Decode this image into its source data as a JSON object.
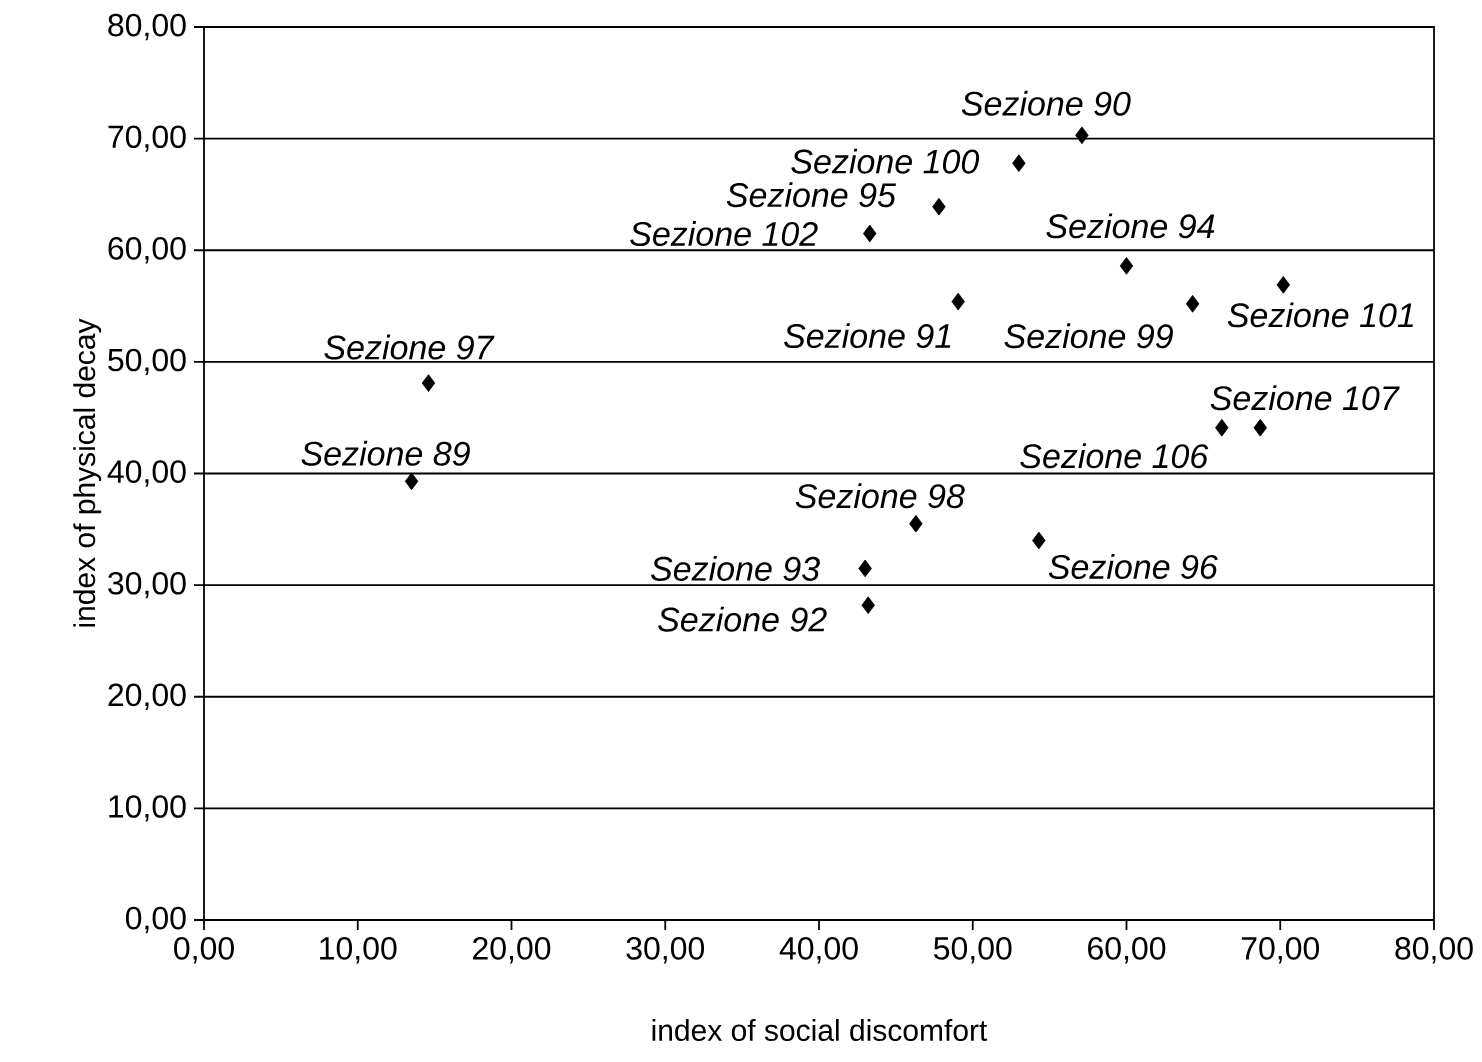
{
  "chart_data": {
    "type": "scatter",
    "xlabel": "index of social discomfort",
    "ylabel": "index of physical decay",
    "x": [
      13.5,
      14.6,
      57.1,
      49.05,
      43.2,
      43.0,
      60.0,
      47.8,
      54.3,
      46.3,
      64.3,
      53.0,
      70.2,
      43.3,
      66.2,
      68.7
    ],
    "values": [
      39.3,
      48.1,
      70.3,
      55.4,
      28.2,
      31.5,
      58.6,
      63.9,
      34.0,
      35.5,
      55.2,
      67.8,
      56.9,
      61.5,
      44.1,
      44.1
    ],
    "color": "#000000",
    "marker": "diamond",
    "grid": "y",
    "xlim": [
      0,
      80
    ],
    "ylim": [
      0,
      80
    ],
    "xticks": [
      {
        "value": 0,
        "label": "0,00"
      },
      {
        "value": 10,
        "label": "10,00"
      },
      {
        "value": 20,
        "label": "20,00"
      },
      {
        "value": 30,
        "label": "30,00"
      },
      {
        "value": 40,
        "label": "40,00"
      },
      {
        "value": 50,
        "label": "50,00"
      },
      {
        "value": 60,
        "label": "60,00"
      },
      {
        "value": 70,
        "label": "70,00"
      },
      {
        "value": 80,
        "label": "80,00"
      }
    ],
    "yticks": [
      {
        "value": 0,
        "label": "0,00"
      },
      {
        "value": 10,
        "label": "10,00"
      },
      {
        "value": 20,
        "label": "20,00"
      },
      {
        "value": 30,
        "label": "30,00"
      },
      {
        "value": 40,
        "label": "40,00"
      },
      {
        "value": 50,
        "label": "50,00"
      },
      {
        "value": 60,
        "label": "60,00"
      },
      {
        "value": 70,
        "label": "70,00"
      },
      {
        "value": 80,
        "label": "80,00"
      }
    ],
    "annotations": [
      {
        "text": "Sezione 89",
        "x": 13.5,
        "y": 39.3
      },
      {
        "text": "Sezione 97",
        "x": 14.6,
        "y": 48.1
      },
      {
        "text": "Sezione 90",
        "x": 57.1,
        "y": 70.3
      },
      {
        "text": "Sezione 91",
        "x": 49.05,
        "y": 55.4
      },
      {
        "text": "Sezione 92",
        "x": 43.2,
        "y": 28.2
      },
      {
        "text": "Sezione 93",
        "x": 43.0,
        "y": 31.5
      },
      {
        "text": "Sezione 94",
        "x": 60.0,
        "y": 58.6
      },
      {
        "text": "Sezione 95",
        "x": 47.8,
        "y": 63.9
      },
      {
        "text": "Sezione 96",
        "x": 54.3,
        "y": 34.0
      },
      {
        "text": "Sezione 98",
        "x": 46.3,
        "y": 35.5
      },
      {
        "text": "Sezione 99",
        "x": 64.3,
        "y": 55.2
      },
      {
        "text": "Sezione 100",
        "x": 53.0,
        "y": 67.8
      },
      {
        "text": "Sezione 101",
        "x": 70.2,
        "y": 56.9
      },
      {
        "text": "Sezione 102",
        "x": 43.3,
        "y": 61.5
      },
      {
        "text": "Sezione 106",
        "x": 66.2,
        "y": 44.1
      },
      {
        "text": "Sezione 107",
        "x": 68.7,
        "y": 44.1
      }
    ]
  }
}
